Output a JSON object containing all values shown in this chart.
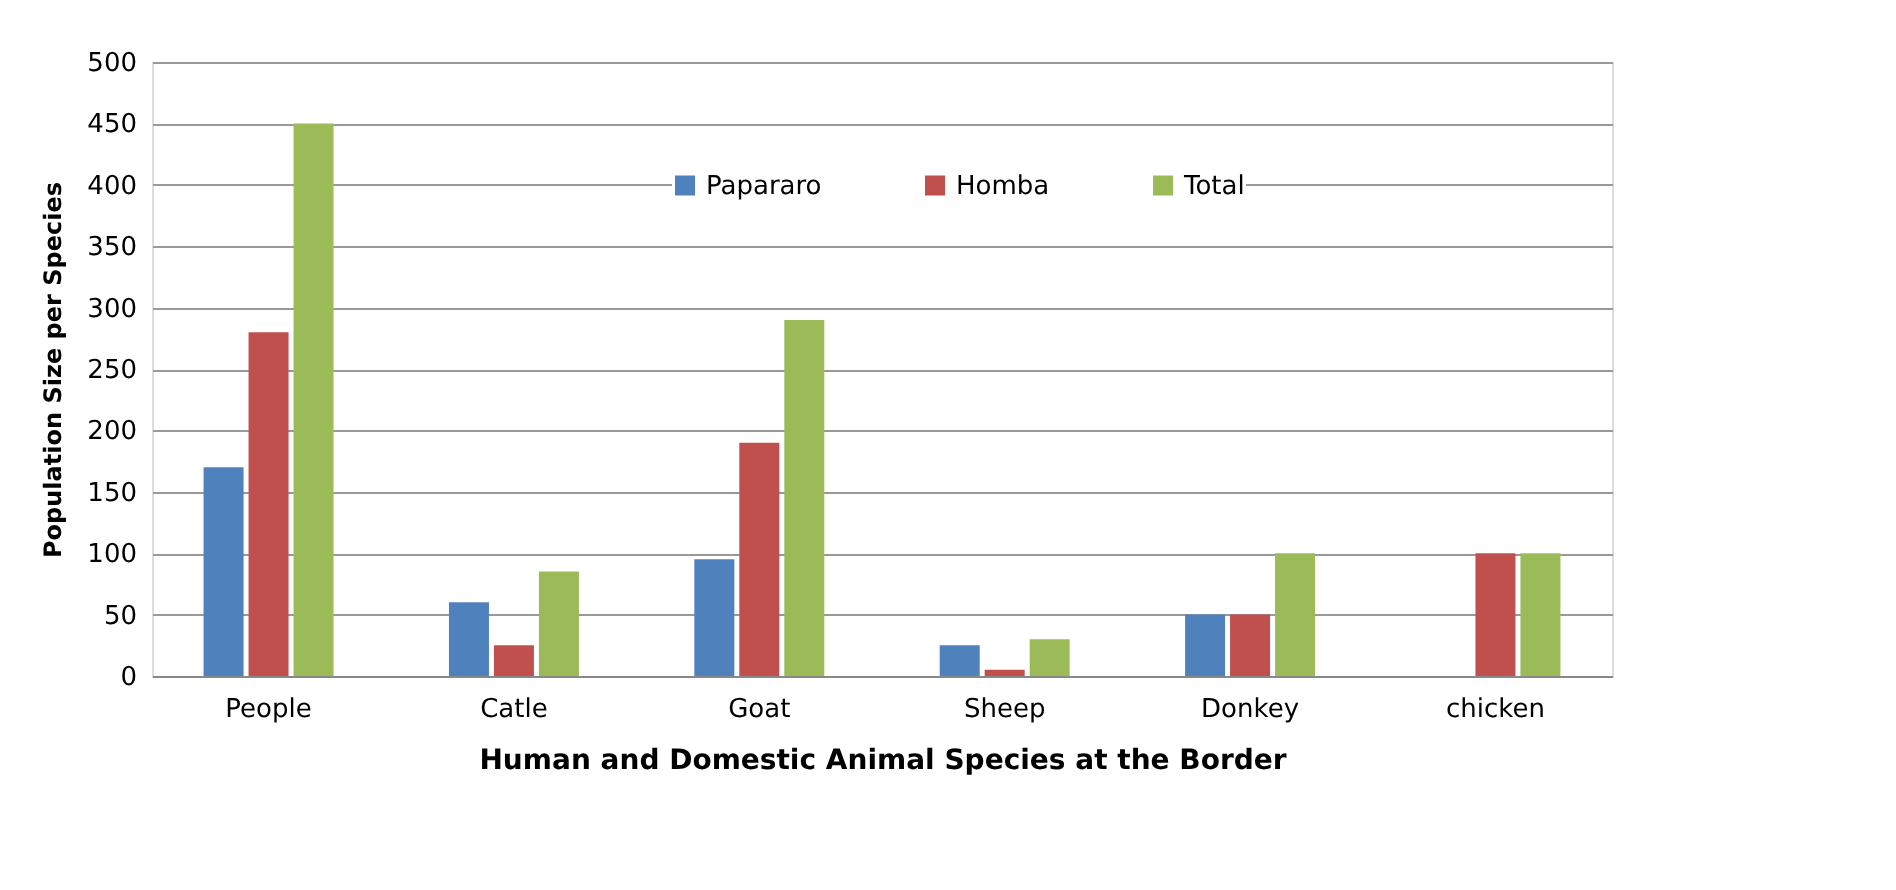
{
  "chart_data": {
    "type": "bar",
    "xlabel": "Human and Domestic  Animal Species at the Border",
    "ylabel": "Population  Size per Species",
    "categories": [
      "People",
      "Catle",
      "Goat",
      "Sheep",
      "Donkey",
      "chicken"
    ],
    "series": [
      {
        "name": "Papararo",
        "color": "#4f81bd",
        "values": [
          170,
          60,
          95,
          25,
          50,
          0
        ]
      },
      {
        "name": "Homba",
        "color": "#c0504d",
        "values": [
          280,
          25,
          190,
          5,
          50,
          100
        ]
      },
      {
        "name": "Total",
        "color": "#9bbb59",
        "values": [
          450,
          85,
          290,
          30,
          100,
          100
        ]
      }
    ],
    "ylim": [
      0,
      500
    ],
    "yticks": [
      0,
      50,
      100,
      150,
      200,
      250,
      300,
      350,
      400,
      450,
      500
    ],
    "grid": "y",
    "legend": "top"
  }
}
